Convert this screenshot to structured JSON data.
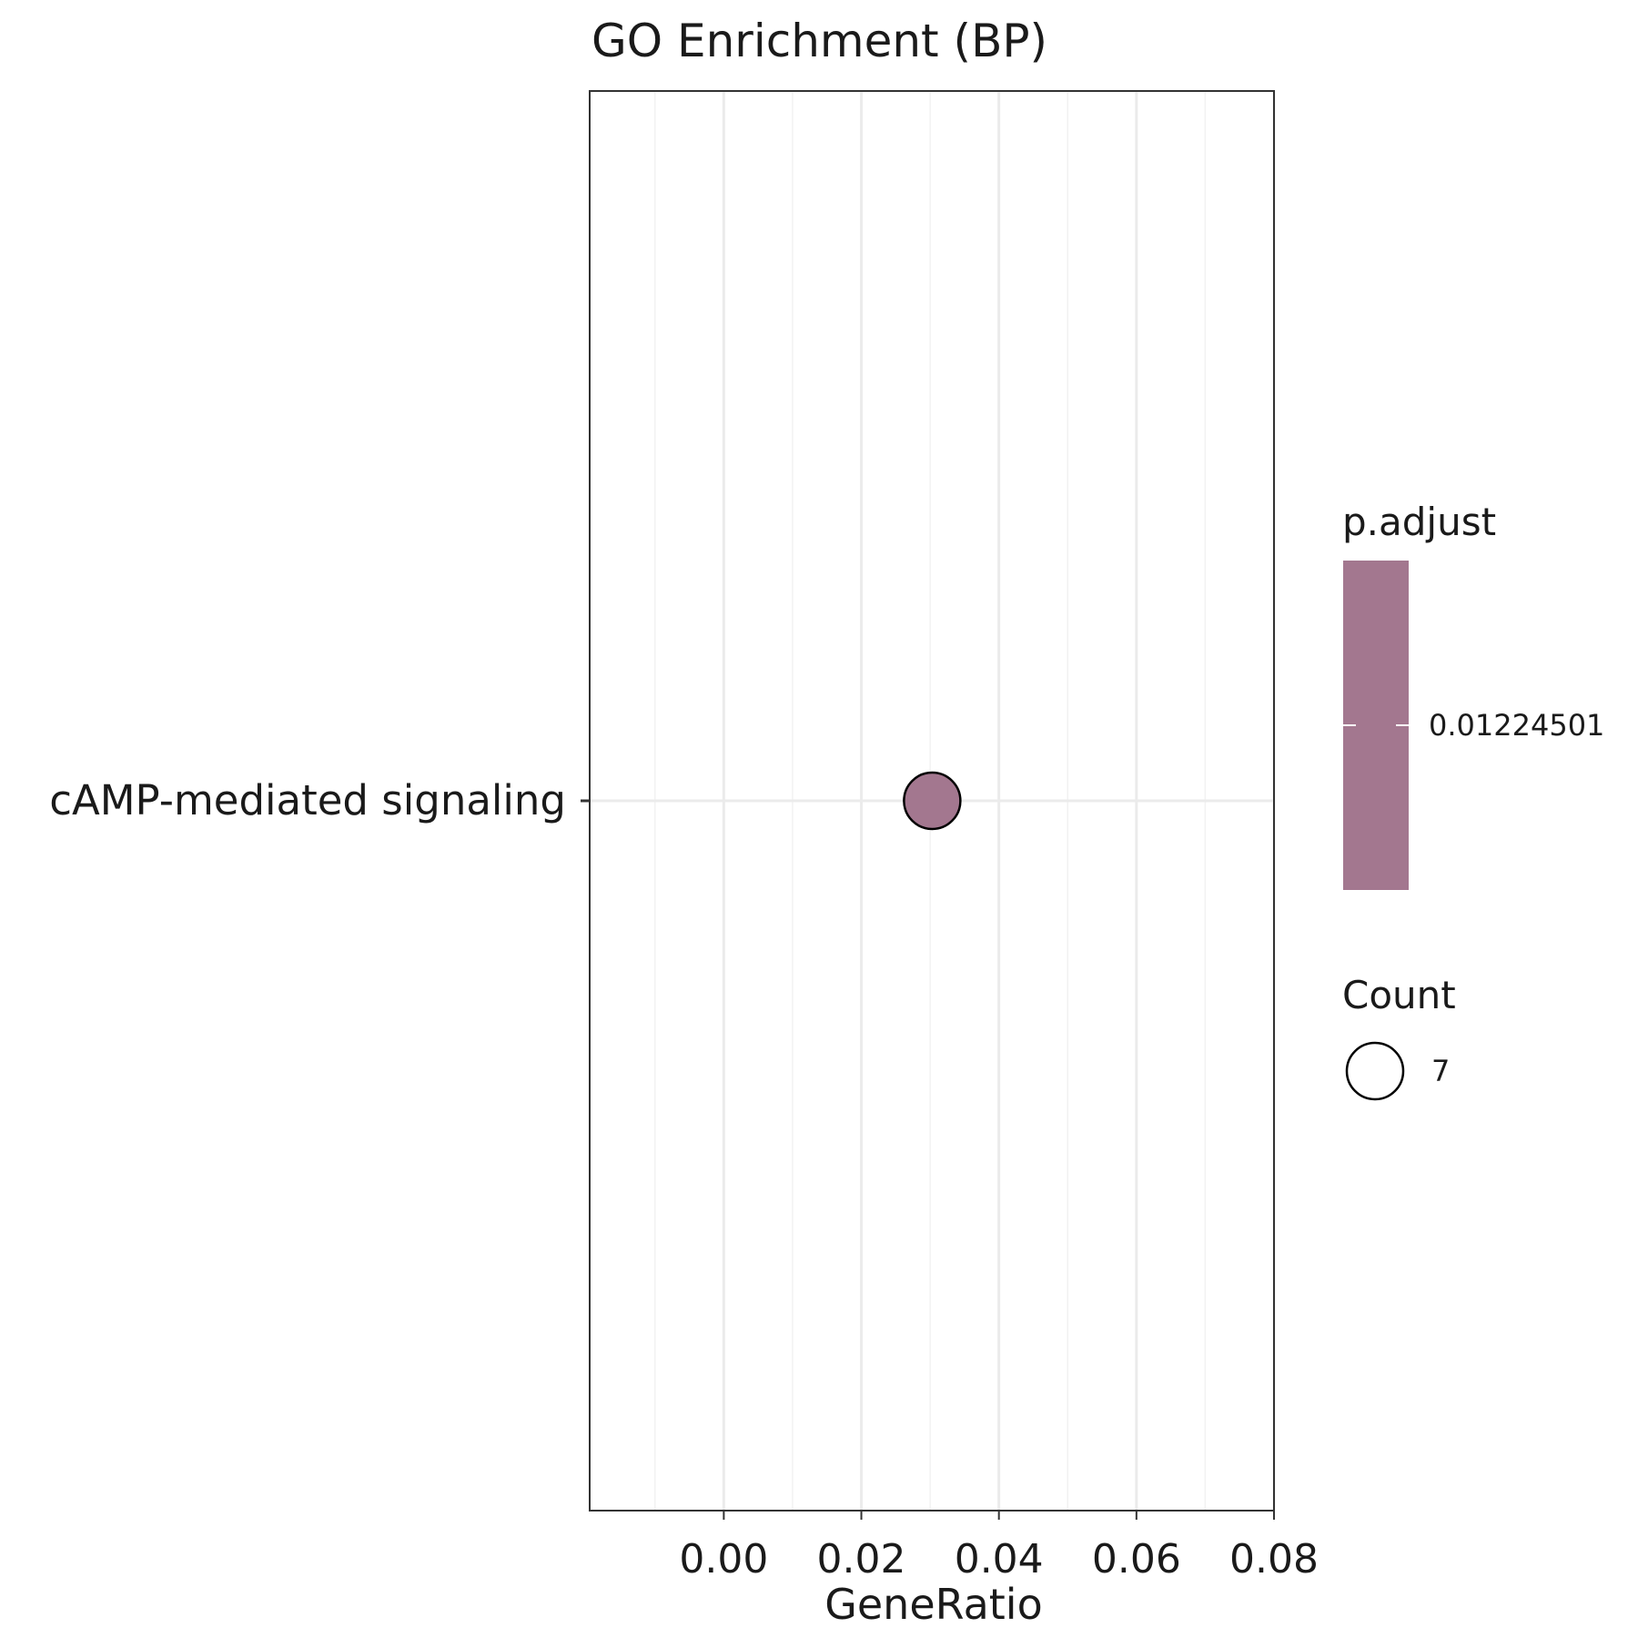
{
  "chart_data": {
    "type": "scatter",
    "title": "GO Enrichment (BP)",
    "xlabel": "GeneRatio",
    "ylabel": "",
    "xlim": [
      -0.0195,
      0.08
    ],
    "xticks": [
      0.0,
      0.02,
      0.04,
      0.06,
      0.08
    ],
    "xtick_labels": [
      "0.00",
      "0.02",
      "0.04",
      "0.06",
      "0.08"
    ],
    "x_minor_ticks": [
      -0.01,
      0.01,
      0.03,
      0.05,
      0.07
    ],
    "categories": [
      "cAMP-mediated signaling"
    ],
    "points": [
      {
        "term": "cAMP-mediated signaling",
        "gene_ratio": 0.0303,
        "count": 7,
        "p_adjust": 0.01224501
      }
    ],
    "grid": true,
    "legend": {
      "placement": "right",
      "color": {
        "title": "p.adjust",
        "value_label": "0.01224501",
        "value": 0.01224501,
        "color": "#a3778f"
      },
      "size": {
        "title": "Count",
        "value_label": "7",
        "value": 7
      }
    },
    "colors": {
      "point_fill": "#a3778f",
      "point_stroke": "#000000",
      "panel_border": "#333333",
      "grid_major": "#ebebeb",
      "grid_minor": "#f2f2f2"
    }
  }
}
